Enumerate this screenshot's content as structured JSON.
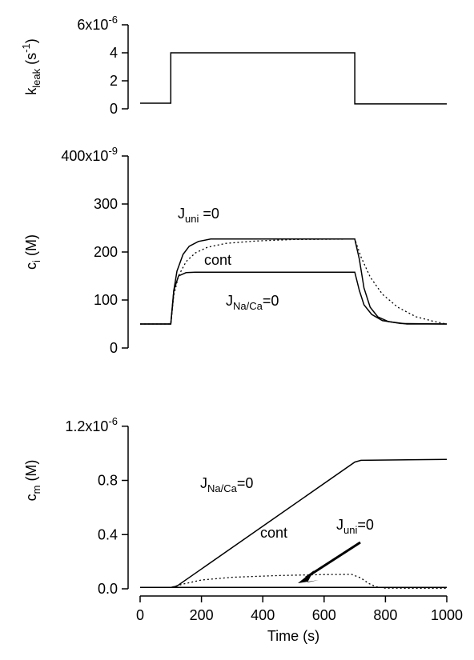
{
  "chart_data": [
    {
      "type": "line",
      "ylabel": "k",
      "ylabel_sub": "leak",
      "ylabel_unit": " (s",
      "ylabel_unit_sup": "-1",
      "ylabel_unit_close": ")",
      "ylim": [
        0,
        6e-06
      ],
      "yticks": [
        {
          "value": 0,
          "label": "0"
        },
        {
          "value": 2e-06,
          "label": "2"
        },
        {
          "value": 4e-06,
          "label": "4"
        },
        {
          "value": 6e-06,
          "label": "6x10",
          "exp": "-6"
        }
      ],
      "series": [
        {
          "style": "solid",
          "points": [
            [
              0,
              4e-07
            ],
            [
              100,
              4e-07
            ],
            [
              100,
              4e-06
            ],
            [
              700,
              4e-06
            ],
            [
              700,
              3.5e-07
            ],
            [
              1000,
              3.5e-07
            ]
          ]
        }
      ]
    },
    {
      "type": "line",
      "ylabel": "c",
      "ylabel_sub": "i",
      "ylabel_unit": " (M)",
      "ylim": [
        0,
        4e-07
      ],
      "yticks": [
        {
          "value": 0,
          "label": "0"
        },
        {
          "value": 1e-07,
          "label": "100"
        },
        {
          "value": 2e-07,
          "label": "200"
        },
        {
          "value": 3e-07,
          "label": "300"
        },
        {
          "value": 4e-07,
          "label": "400x10",
          "exp": "-9"
        }
      ],
      "series": [
        {
          "style": "solid",
          "label": "J_uni=0",
          "points": [
            [
              0,
              5e-08
            ],
            [
              100,
              5e-08
            ],
            [
              110,
              1.2e-07
            ],
            [
              120,
              1.6e-07
            ],
            [
              140,
              1.95e-07
            ],
            [
              160,
              2.12e-07
            ],
            [
              190,
              2.22e-07
            ],
            [
              230,
              2.27e-07
            ],
            [
              700,
              2.27e-07
            ],
            [
              715,
              1.85e-07
            ],
            [
              730,
              1.25e-07
            ],
            [
              750,
              8.5e-08
            ],
            [
              775,
              6.5e-08
            ],
            [
              810,
              5.5e-08
            ],
            [
              870,
              5e-08
            ],
            [
              1000,
              5e-08
            ]
          ]
        },
        {
          "style": "dotted",
          "label": "cont",
          "points": [
            [
              0,
              5e-08
            ],
            [
              100,
              5e-08
            ],
            [
              110,
              1.1e-07
            ],
            [
              125,
              1.5e-07
            ],
            [
              150,
              1.8e-07
            ],
            [
              180,
              1.98e-07
            ],
            [
              220,
              2.1e-07
            ],
            [
              280,
              2.18e-07
            ],
            [
              380,
              2.23e-07
            ],
            [
              500,
              2.26e-07
            ],
            [
              700,
              2.27e-07
            ],
            [
              720,
              1.9e-07
            ],
            [
              750,
              1.48e-07
            ],
            [
              790,
              1.12e-07
            ],
            [
              840,
              8.5e-08
            ],
            [
              900,
              6.5e-08
            ],
            [
              960,
              5.5e-08
            ],
            [
              1000,
              5e-08
            ]
          ]
        },
        {
          "style": "solid",
          "label": "J_Na/Ca=0",
          "points": [
            [
              0,
              5e-08
            ],
            [
              100,
              5e-08
            ],
            [
              110,
              1.2e-07
            ],
            [
              125,
              1.5e-07
            ],
            [
              150,
              1.57e-07
            ],
            [
              180,
              1.58e-07
            ],
            [
              700,
              1.58e-07
            ],
            [
              715,
              1.2e-07
            ],
            [
              730,
              9e-08
            ],
            [
              755,
              7e-08
            ],
            [
              790,
              5.7e-08
            ],
            [
              850,
              5.1e-08
            ],
            [
              1000,
              5e-08
            ]
          ]
        }
      ],
      "annotations": [
        {
          "text": "J",
          "sub": "uni",
          "after": " =0"
        },
        {
          "text": "cont"
        },
        {
          "text": "J",
          "sub": "Na/Ca",
          "after": "=0"
        }
      ]
    },
    {
      "type": "line",
      "xlabel": "Time (s)",
      "ylabel": "c",
      "ylabel_sub": "m",
      "ylabel_unit": " (M)",
      "xlim": [
        0,
        1000
      ],
      "ylim": [
        0,
        1.6e-06
      ],
      "xticks": [
        {
          "value": 0,
          "label": "0"
        },
        {
          "value": 200,
          "label": "200"
        },
        {
          "value": 400,
          "label": "400"
        },
        {
          "value": 600,
          "label": "600"
        },
        {
          "value": 800,
          "label": "800"
        },
        {
          "value": 1000,
          "label": "1000"
        }
      ],
      "yticks": [
        {
          "value": 0,
          "label": "0.0"
        },
        {
          "value": 4e-07,
          "label": "0.4"
        },
        {
          "value": 8e-07,
          "label": "0.8"
        },
        {
          "value": 1.2e-06,
          "label": "1.2x10",
          "exp": "-6"
        }
      ],
      "series": [
        {
          "style": "solid",
          "label": "J_Na/Ca=0",
          "points": [
            [
              0,
              1e-08
            ],
            [
              100,
              1e-08
            ],
            [
              120,
              2e-08
            ],
            [
              700,
              9.35e-07
            ],
            [
              720,
              9.48e-07
            ],
            [
              1000,
              9.55e-07
            ]
          ]
        },
        {
          "style": "dotted",
          "label": "cont",
          "points": [
            [
              0,
              1e-08
            ],
            [
              100,
              1e-08
            ],
            [
              140,
              3.5e-08
            ],
            [
              200,
              6.5e-08
            ],
            [
              300,
              8.5e-08
            ],
            [
              450,
              9.8e-08
            ],
            [
              600,
              1.05e-07
            ],
            [
              690,
              1.06e-07
            ],
            [
              720,
              8e-08
            ],
            [
              745,
              4e-08
            ],
            [
              770,
              1.5e-08
            ],
            [
              800,
              5e-09
            ],
            [
              1000,
              3e-09
            ]
          ]
        },
        {
          "style": "solid",
          "label": "J_uni=0",
          "points": [
            [
              0,
              1e-08
            ],
            [
              1000,
              1e-08
            ]
          ]
        }
      ],
      "annotations": [
        {
          "text": "J",
          "sub": "Na/Ca",
          "after": "=0"
        },
        {
          "text": "cont"
        },
        {
          "text": "J",
          "sub": "uni",
          "after": "=0"
        }
      ]
    }
  ]
}
